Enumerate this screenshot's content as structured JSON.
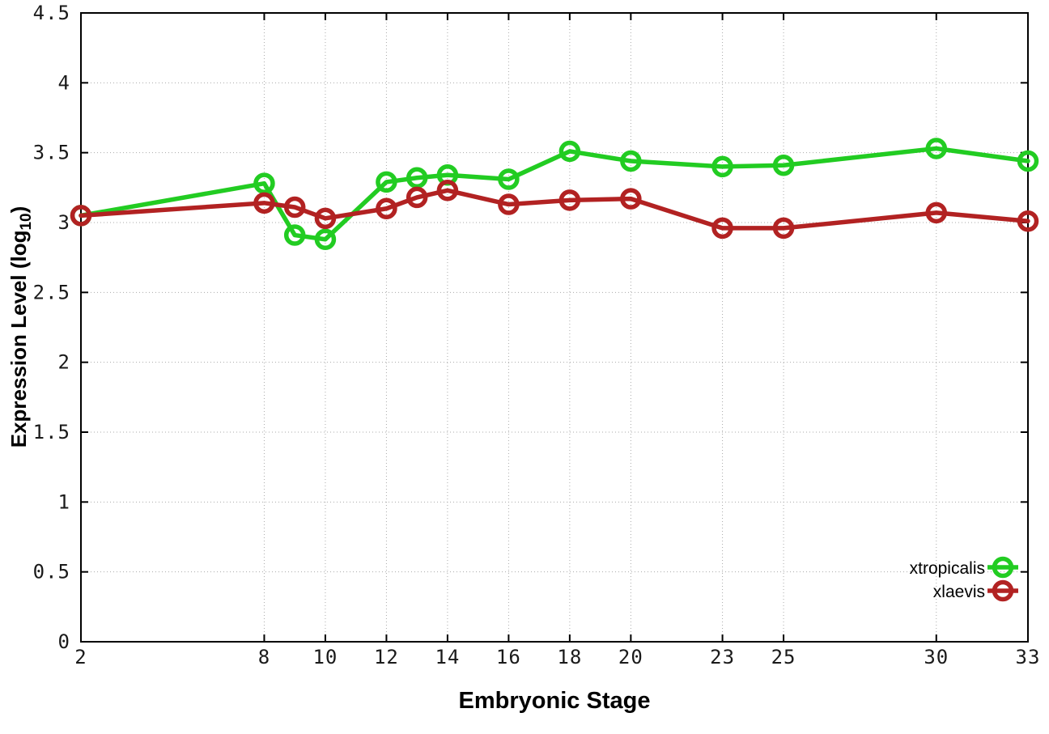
{
  "chart_data": {
    "type": "line",
    "title": "",
    "xlabel": "Embryonic Stage",
    "ylabel": {
      "prefix": "Expression Level (log",
      "subscript": "10",
      "suffix": ")"
    },
    "xlim": [
      2,
      33
    ],
    "ylim": [
      0,
      4.5
    ],
    "grid": "dotted",
    "legend_position": "bottom-right-inside",
    "x": [
      2,
      8,
      9,
      10,
      12,
      13,
      14,
      16,
      18,
      20,
      23,
      25,
      30,
      33
    ],
    "xticks": [
      2,
      8,
      10,
      12,
      14,
      16,
      18,
      20,
      23,
      25,
      30,
      33
    ],
    "xtick_labels": [
      "2",
      "8",
      "10",
      "12",
      "14",
      "16",
      "18",
      "20",
      "23",
      "25",
      "30",
      "33"
    ],
    "yticks": [
      0,
      0.5,
      1,
      1.5,
      2,
      2.5,
      3,
      3.5,
      4,
      4.5
    ],
    "ytick_labels": [
      "0",
      "0.5",
      "1",
      "1.5",
      "2",
      "2.5",
      "3",
      "3.5",
      "4",
      "4.5"
    ],
    "series": [
      {
        "name": "xtropicalis",
        "color": "#22cc22",
        "marker": "open-circle",
        "values": [
          3.05,
          3.28,
          2.91,
          2.88,
          3.29,
          3.32,
          3.34,
          3.31,
          3.51,
          3.44,
          3.4,
          3.41,
          3.53,
          3.44
        ]
      },
      {
        "name": "xlaevis",
        "color": "#b22222",
        "marker": "open-circle",
        "values": [
          3.05,
          3.14,
          3.11,
          3.03,
          3.1,
          3.18,
          3.23,
          3.13,
          3.16,
          3.17,
          2.96,
          2.96,
          3.07,
          3.01
        ]
      }
    ]
  }
}
